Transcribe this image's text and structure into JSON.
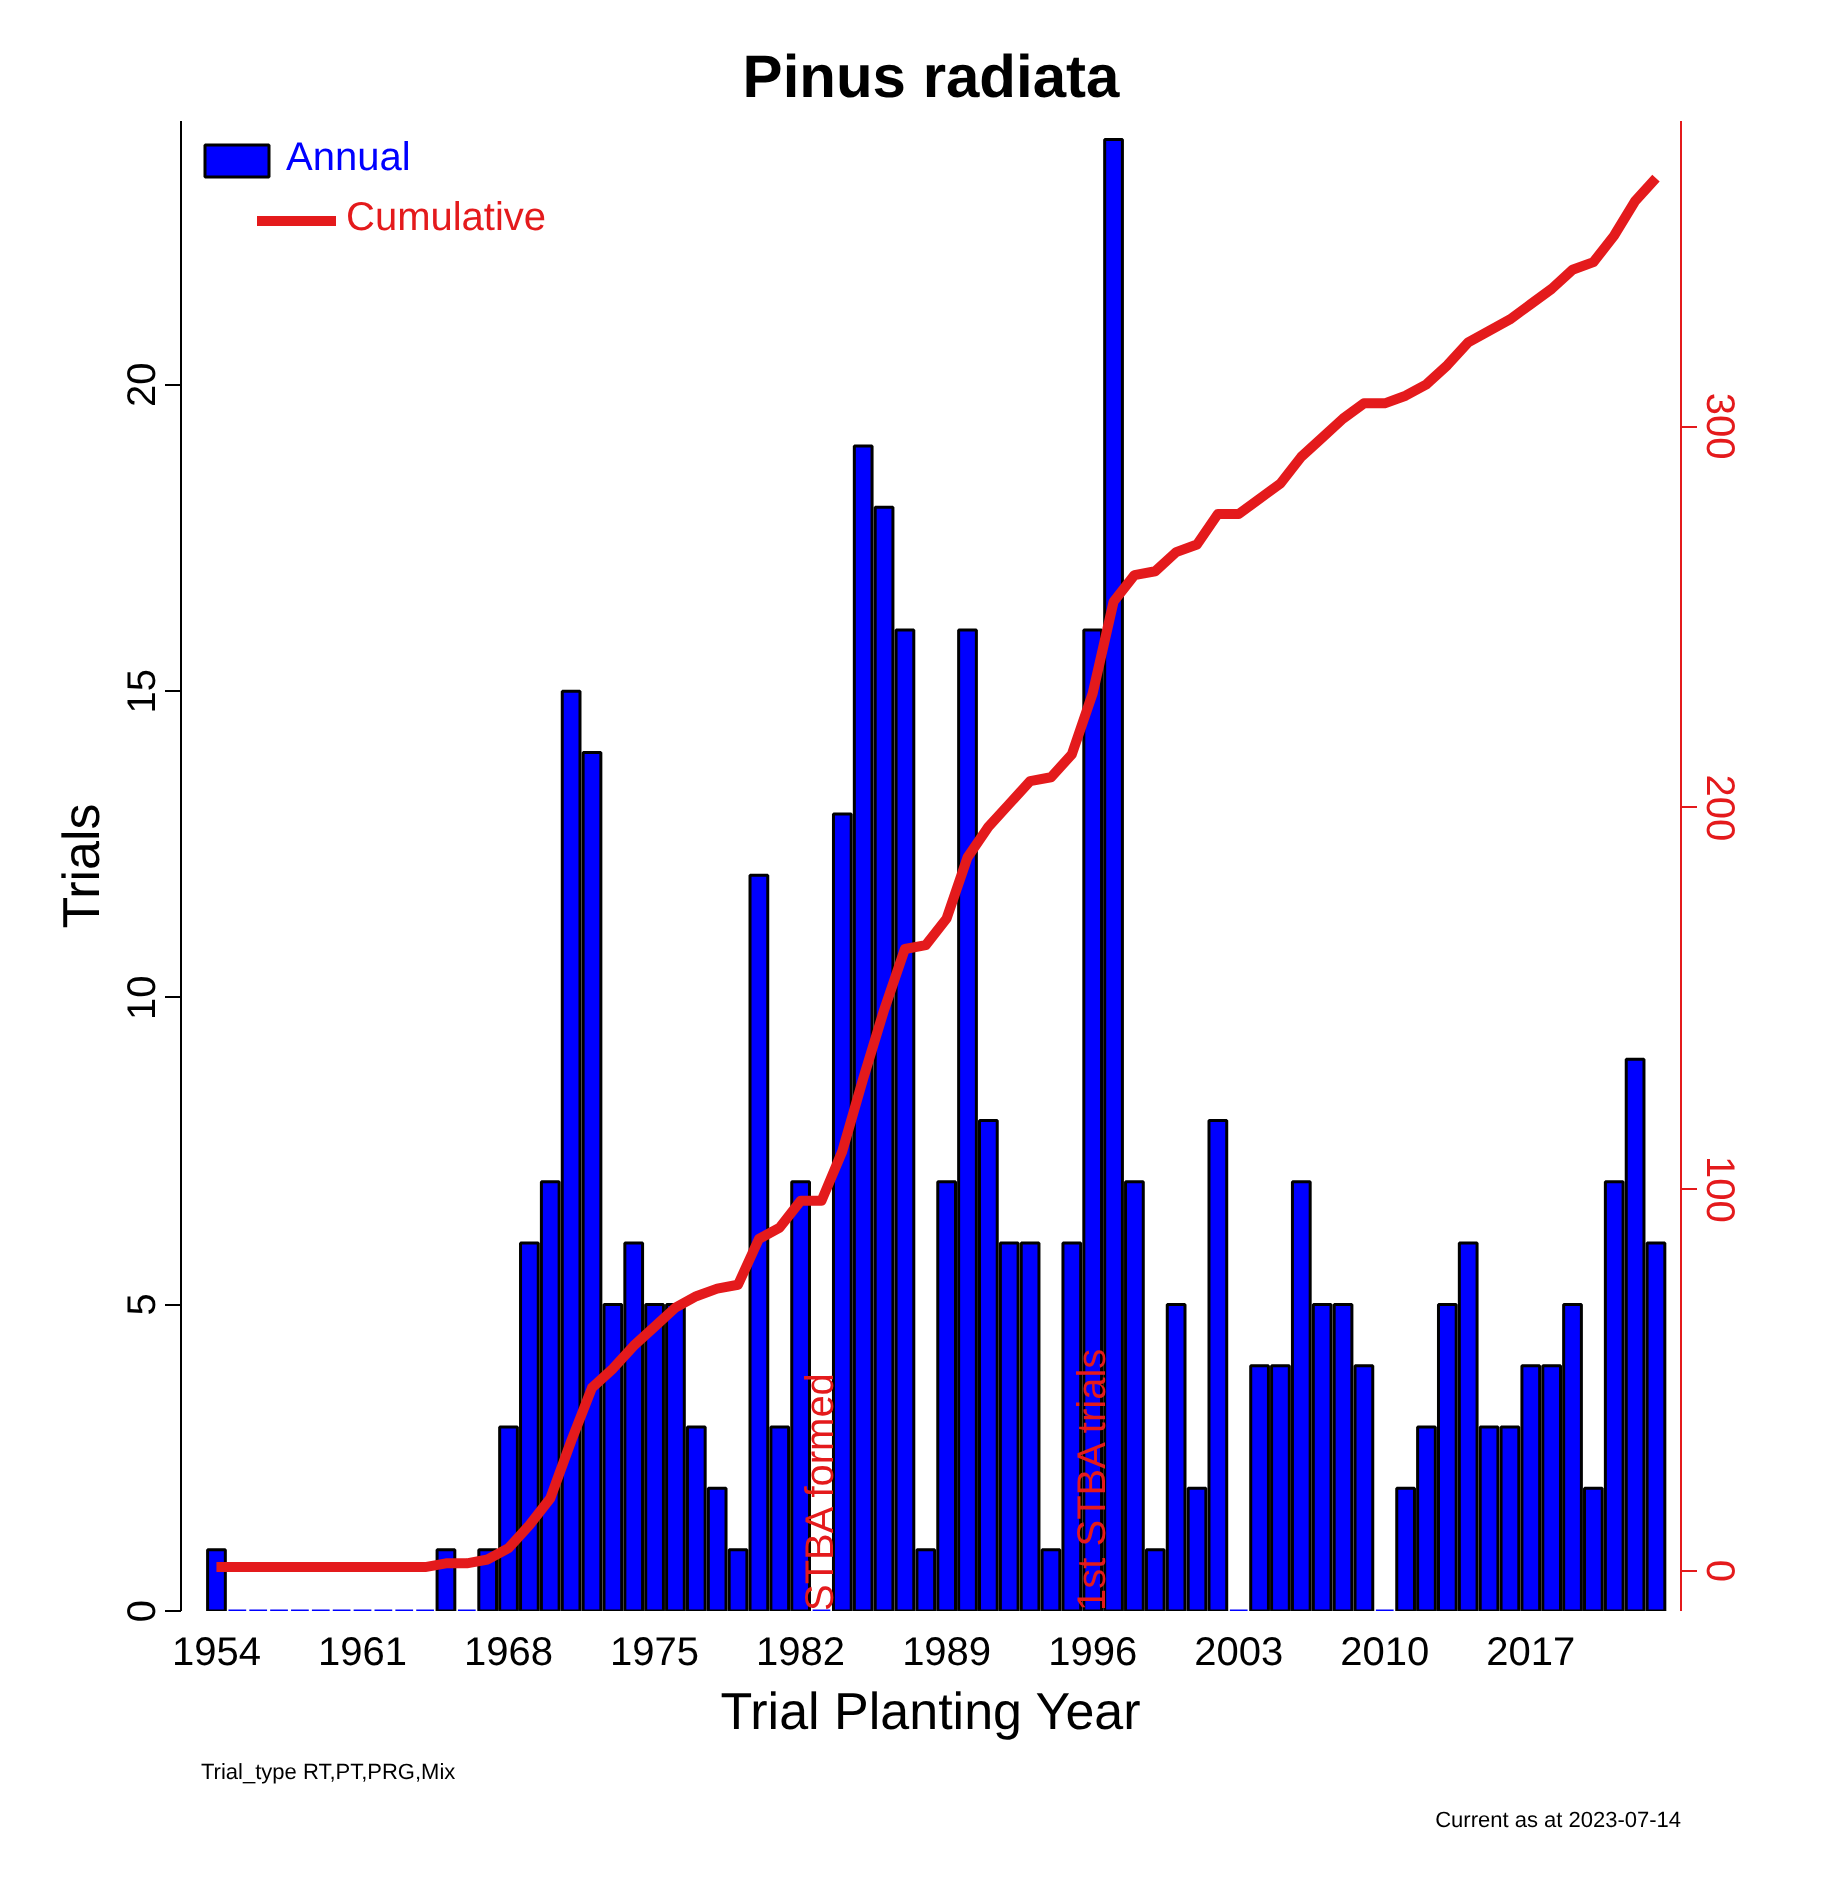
{
  "chart_data": {
    "type": "bar",
    "title": "Pinus radiata",
    "xlabel": "Trial Planting Year",
    "ylabel": "Trials",
    "x": [
      1954,
      1955,
      1956,
      1957,
      1958,
      1959,
      1960,
      1961,
      1962,
      1963,
      1964,
      1965,
      1966,
      1967,
      1968,
      1969,
      1970,
      1971,
      1972,
      1973,
      1974,
      1975,
      1976,
      1977,
      1978,
      1979,
      1980,
      1981,
      1982,
      1983,
      1984,
      1985,
      1986,
      1987,
      1988,
      1989,
      1990,
      1991,
      1992,
      1993,
      1994,
      1995,
      1996,
      1997,
      1998,
      1999,
      2000,
      2001,
      2002,
      2003,
      2004,
      2005,
      2006,
      2007,
      2008,
      2009,
      2010,
      2011,
      2012,
      2013,
      2014,
      2015,
      2016,
      2017,
      2018,
      2019,
      2020,
      2021,
      2022,
      2023
    ],
    "series": [
      {
        "name": "Annual",
        "color": "#0000ff",
        "values": [
          1,
          0,
          0,
          0,
          0,
          0,
          0,
          0,
          0,
          0,
          0,
          1,
          0,
          1,
          3,
          6,
          7,
          15,
          14,
          5,
          6,
          5,
          5,
          3,
          2,
          1,
          12,
          3,
          7,
          0,
          13,
          19,
          18,
          16,
          1,
          7,
          16,
          8,
          6,
          6,
          1,
          6,
          16,
          24,
          7,
          1,
          5,
          2,
          8,
          0,
          4,
          4,
          7,
          5,
          5,
          4,
          0,
          2,
          3,
          5,
          6,
          3,
          3,
          4,
          4,
          5,
          2,
          7,
          9,
          6
        ]
      },
      {
        "name": "Cumulative",
        "type": "line",
        "axis": "y2",
        "color": "#e41a1c",
        "values": [
          1,
          1,
          1,
          1,
          1,
          1,
          1,
          1,
          1,
          1,
          1,
          2,
          2,
          3,
          6,
          12,
          19,
          34,
          48,
          53,
          59,
          64,
          69,
          72,
          74,
          75,
          87,
          90,
          97,
          97,
          110,
          129,
          147,
          163,
          164,
          171,
          187,
          195,
          201,
          207,
          208,
          214,
          230,
          254,
          261,
          262,
          267,
          269,
          277,
          277,
          281,
          285,
          292,
          297,
          302,
          306,
          306,
          308,
          311,
          316,
          322,
          325,
          328,
          332,
          336,
          341,
          343,
          350,
          359,
          365
        ]
      }
    ],
    "xlim": [
      1952.3,
      2024.2
    ],
    "xticks": [
      1954,
      1961,
      1968,
      1975,
      1982,
      1989,
      1996,
      2003,
      2010,
      2017
    ],
    "ylim": [
      0,
      24.3
    ],
    "yticks": [
      0,
      5,
      10,
      15,
      20
    ],
    "y2lim": [
      -10.5,
      380
    ],
    "y2ticks": [
      0,
      100,
      200,
      300
    ],
    "grid": false,
    "legend": "top left",
    "line_style": "solid",
    "marker": "none",
    "annotations": [
      {
        "text": "STBA formed",
        "x": 1983,
        "y": 0
      },
      {
        "text": "1st STBA trials",
        "x": 1996,
        "y": 0
      },
      "Trial_type RT,PT,PRG,Mix",
      "Current as at 2023-07-14"
    ]
  }
}
